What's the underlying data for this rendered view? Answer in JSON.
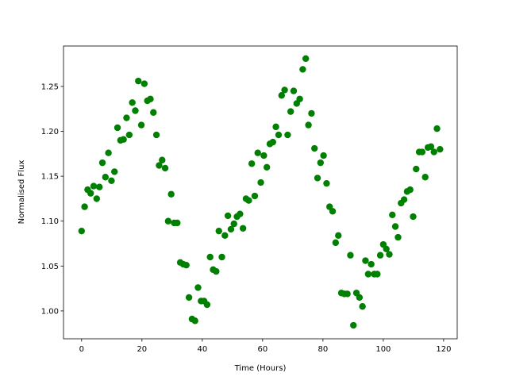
{
  "chart_data": {
    "type": "scatter",
    "xlabel": "Time (Hours)",
    "ylabel": "Normalised Flux",
    "color": "#008000",
    "x": [
      0,
      1,
      2,
      3,
      4,
      5,
      5.9,
      6.9,
      7.9,
      8.9,
      9.9,
      10.9,
      11.9,
      12.9,
      13.9,
      14.9,
      15.8,
      16.8,
      17.8,
      18.8,
      19.8,
      20.8,
      21.8,
      22.8,
      23.8,
      24.8,
      25.7,
      26.7,
      27.7,
      28.7,
      29.7,
      30.7,
      31.7,
      32.7,
      33.7,
      34.7,
      35.6,
      36.6,
      37.6,
      38.6,
      39.6,
      40.6,
      41.6,
      42.6,
      43.6,
      44.6,
      45.5,
      46.5,
      47.5,
      48.5,
      49.5,
      50.5,
      51.5,
      52.5,
      53.5,
      54.5,
      55.4,
      56.4,
      57.4,
      58.4,
      59.4,
      60.4,
      61.4,
      62.4,
      63.4,
      64.4,
      65.3,
      66.3,
      67.3,
      68.3,
      69.3,
      70.3,
      71.3,
      72.3,
      73.3,
      74.3,
      75.2,
      76.2,
      77.2,
      78.2,
      79.2,
      80.2,
      81.2,
      82.2,
      83.2,
      84.2,
      85.1,
      86.1,
      87.1,
      88.1,
      89.1,
      90.1,
      91.1,
      92.1,
      93.1,
      94.1,
      95,
      96,
      97,
      98,
      99,
      100,
      101,
      102,
      103,
      104,
      104.9,
      105.9,
      106.9,
      107.9,
      108.9,
      109.9,
      110.9,
      111.9,
      112.9,
      113.9,
      114.8,
      115.8,
      116.8,
      117.8,
      118.8
    ],
    "values": [
      1.089,
      1.116,
      1.135,
      1.131,
      1.139,
      1.125,
      1.138,
      1.165,
      1.149,
      1.176,
      1.145,
      1.155,
      1.204,
      1.19,
      1.191,
      1.215,
      1.196,
      1.232,
      1.223,
      1.256,
      1.207,
      1.253,
      1.234,
      1.236,
      1.221,
      1.196,
      1.162,
      1.168,
      1.159,
      1.1,
      1.13,
      1.098,
      1.098,
      1.054,
      1.052,
      1.051,
      1.015,
      0.991,
      0.989,
      1.026,
      1.011,
      1.011,
      1.007,
      1.06,
      1.046,
      1.044,
      1.089,
      1.06,
      1.084,
      1.106,
      1.091,
      1.097,
      1.105,
      1.108,
      1.092,
      1.125,
      1.123,
      1.164,
      1.128,
      1.176,
      1.143,
      1.173,
      1.16,
      1.186,
      1.188,
      1.205,
      1.196,
      1.24,
      1.246,
      1.196,
      1.222,
      1.245,
      1.231,
      1.236,
      1.269,
      1.281,
      1.207,
      1.22,
      1.181,
      1.148,
      1.165,
      1.173,
      1.142,
      1.116,
      1.111,
      1.076,
      1.084,
      1.02,
      1.019,
      1.019,
      1.062,
      0.984,
      1.02,
      1.015,
      1.005,
      1.056,
      1.041,
      1.052,
      1.041,
      1.041,
      1.062,
      1.074,
      1.069,
      1.063,
      1.107,
      1.094,
      1.082,
      1.12,
      1.124,
      1.133,
      1.135,
      1.105,
      1.158,
      1.177,
      1.177,
      1.149,
      1.182,
      1.183,
      1.177,
      1.203,
      1.18
    ],
    "xlim": [
      -6,
      124.5
    ],
    "xticks": [
      0,
      20,
      40,
      60,
      80,
      100,
      120
    ],
    "ylim": [
      0.969,
      1.295
    ],
    "yticks": [
      {
        "value": 1.0,
        "label": "1.00"
      },
      {
        "value": 1.05,
        "label": "1.05"
      },
      {
        "value": 1.1,
        "label": "1.10"
      },
      {
        "value": 1.15,
        "label": "1.15"
      },
      {
        "value": 1.2,
        "label": "1.20"
      },
      {
        "value": 1.25,
        "label": "1.25"
      }
    ]
  }
}
